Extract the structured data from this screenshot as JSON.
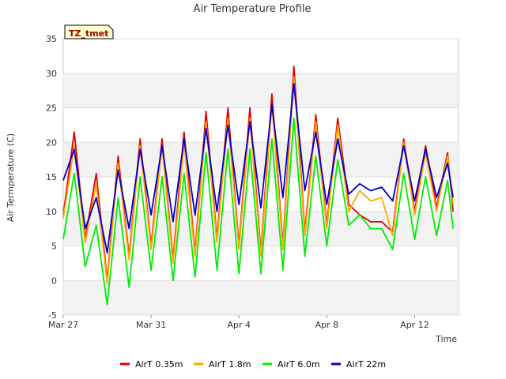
{
  "chart_data": {
    "type": "line",
    "title": "Air Temperature Profile",
    "xlabel": "Time",
    "ylabel": "Air Termperature (C)",
    "badge": "TZ_tmet",
    "ylim": [
      -5,
      35
    ],
    "yticks": [
      -5,
      0,
      5,
      10,
      15,
      20,
      25,
      30,
      35
    ],
    "xlim": [
      "2023-03-27",
      "2023-04-14"
    ],
    "xticks": [
      {
        "date": "2023-03-27",
        "label": "Mar 27"
      },
      {
        "date": "2023-03-31",
        "label": "Mar 31"
      },
      {
        "date": "2023-04-04",
        "label": "Apr 4"
      },
      {
        "date": "2023-04-08",
        "label": "Apr 8"
      },
      {
        "date": "2023-04-12",
        "label": "Apr 12"
      }
    ],
    "grid": "horizontal bands",
    "legend_position": "bottom",
    "x": [
      "2023-03-27 00:00",
      "2023-03-27 12:00",
      "2023-03-28 00:00",
      "2023-03-28 12:00",
      "2023-03-29 00:00",
      "2023-03-29 12:00",
      "2023-03-30 00:00",
      "2023-03-30 12:00",
      "2023-03-31 00:00",
      "2023-03-31 12:00",
      "2023-04-01 00:00",
      "2023-04-01 12:00",
      "2023-04-02 00:00",
      "2023-04-02 12:00",
      "2023-04-03 00:00",
      "2023-04-03 12:00",
      "2023-04-04 00:00",
      "2023-04-04 12:00",
      "2023-04-05 00:00",
      "2023-04-05 12:00",
      "2023-04-06 00:00",
      "2023-04-06 12:00",
      "2023-04-07 00:00",
      "2023-04-07 12:00",
      "2023-04-08 00:00",
      "2023-04-08 12:00",
      "2023-04-09 00:00",
      "2023-04-09 12:00",
      "2023-04-10 00:00",
      "2023-04-10 12:00",
      "2023-04-11 00:00",
      "2023-04-11 12:00",
      "2023-04-12 00:00",
      "2023-04-12 12:00",
      "2023-04-13 00:00",
      "2023-04-13 12:00",
      "2023-04-13 18:00"
    ],
    "series": [
      {
        "name": "AirT 0.35m",
        "color": "#dd0000",
        "values": [
          9.5,
          21.5,
          6,
          15.5,
          0,
          18,
          3.5,
          20.5,
          5,
          20.5,
          3,
          21.5,
          4,
          24.5,
          6,
          25,
          5,
          25,
          4,
          27,
          5,
          31,
          7,
          24,
          8,
          23.5,
          11,
          9.5,
          8.5,
          8.5,
          7,
          20.5,
          10,
          19.5,
          10.5,
          18.5,
          10
        ]
      },
      {
        "name": "AirT 1.8m",
        "color": "#ffa500",
        "values": [
          9,
          19.5,
          5.5,
          14,
          -0.5,
          17,
          3,
          19.5,
          4.5,
          19.5,
          2.5,
          20,
          3.5,
          23,
          5.5,
          23.5,
          4.5,
          23.5,
          3.5,
          25.5,
          4.5,
          29.5,
          6.5,
          23,
          7.5,
          22.5,
          10,
          13,
          11.5,
          12,
          6.5,
          20,
          9.5,
          18.5,
          10,
          18,
          11
        ]
      },
      {
        "name": "AirT 6.0m",
        "color": "#00ee00",
        "values": [
          6,
          15.5,
          2,
          8,
          -3.5,
          12,
          -1,
          15,
          1.5,
          15,
          0,
          15.5,
          0.5,
          18.5,
          1.5,
          19,
          1,
          19,
          1,
          20.5,
          1.5,
          23.5,
          3.5,
          18,
          5,
          17.5,
          8,
          9.5,
          7.5,
          7.5,
          4.5,
          15.5,
          6,
          15,
          6.5,
          14.5,
          7.5
        ]
      },
      {
        "name": "AirT 22m",
        "color": "#0000cc",
        "values": [
          14.5,
          19,
          7.5,
          12,
          4,
          16,
          7.5,
          19,
          9.5,
          19.5,
          8.5,
          20.5,
          9.5,
          22,
          10,
          22.5,
          11,
          23,
          10.5,
          25.5,
          12,
          28.5,
          13,
          21.5,
          11,
          20.5,
          12.5,
          14,
          13,
          13.5,
          11.5,
          19.5,
          11.5,
          19,
          12,
          17,
          12
        ]
      }
    ]
  }
}
